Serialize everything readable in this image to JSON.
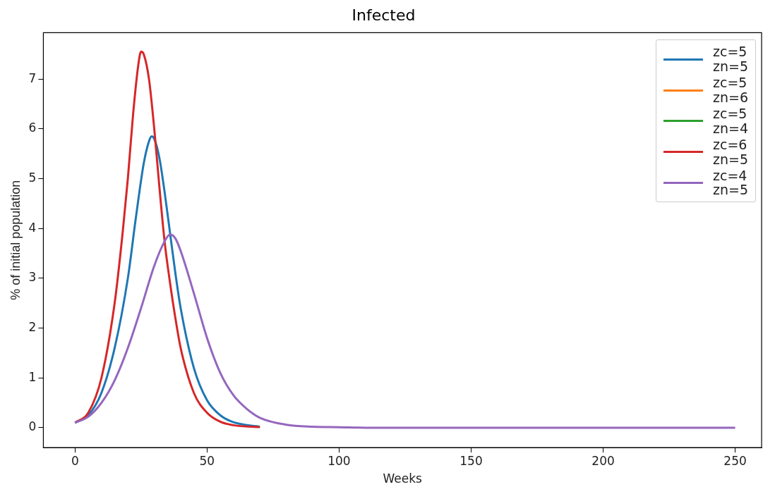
{
  "chart_data": {
    "type": "line",
    "title": "Infected",
    "xlabel": "Weeks",
    "ylabel": "% of initial population",
    "xlim": [
      -12,
      260
    ],
    "ylim": [
      -0.4,
      7.93
    ],
    "xticks": [
      0,
      50,
      100,
      150,
      200,
      250
    ],
    "yticks": [
      0,
      1,
      2,
      3,
      4,
      5,
      6,
      7
    ],
    "grid": false,
    "legend": "top right",
    "marker": "none",
    "line_style": "solid",
    "series": [
      {
        "name": "zc=5\nzn=5",
        "color": "#1f77b4",
        "x": [
          0,
          5,
          10,
          15,
          20,
          23,
          26,
          28,
          29,
          30,
          32,
          34,
          36,
          38,
          40,
          45,
          50,
          55,
          60,
          70
        ],
        "values": [
          0.1,
          0.25,
          0.7,
          1.6,
          3.0,
          4.2,
          5.3,
          5.75,
          5.85,
          5.8,
          5.4,
          4.7,
          3.9,
          3.1,
          2.4,
          1.2,
          0.55,
          0.25,
          0.11,
          0.02
        ]
      },
      {
        "name": "zc=5\nzn=6",
        "color": "#ff7f0e"
      },
      {
        "name": "zc=5\nzn=4",
        "color": "#2ca02c"
      },
      {
        "name": "zc=6\nzn=5",
        "color": "#d62728",
        "x": [
          0,
          5,
          10,
          15,
          18,
          20,
          22,
          24,
          25,
          26,
          28,
          30,
          32,
          34,
          36,
          38,
          40,
          45,
          50,
          55,
          60,
          70
        ],
        "values": [
          0.1,
          0.3,
          1.0,
          2.5,
          3.9,
          5.0,
          6.3,
          7.3,
          7.55,
          7.5,
          7.0,
          6.0,
          4.8,
          3.7,
          2.9,
          2.2,
          1.6,
          0.7,
          0.3,
          0.12,
          0.05,
          0.01
        ]
      },
      {
        "name": "zc=4\nzn=5",
        "color": "#9467bd",
        "x": [
          0,
          5,
          10,
          15,
          20,
          25,
          30,
          34,
          36,
          38,
          40,
          45,
          50,
          55,
          60,
          65,
          70,
          80,
          90,
          100,
          110,
          250
        ],
        "values": [
          0.1,
          0.22,
          0.5,
          0.95,
          1.6,
          2.4,
          3.25,
          3.75,
          3.88,
          3.8,
          3.55,
          2.7,
          1.8,
          1.1,
          0.65,
          0.38,
          0.2,
          0.06,
          0.02,
          0.01,
          0,
          0
        ]
      }
    ]
  }
}
